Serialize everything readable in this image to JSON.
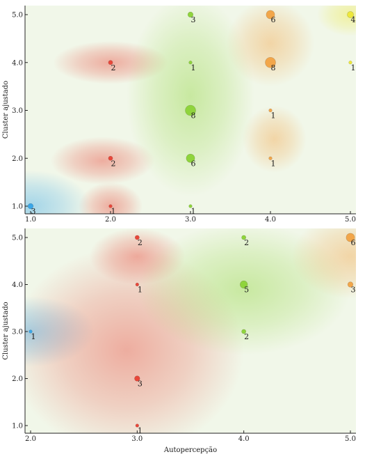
{
  "chart_data": [
    {
      "type": "scatter",
      "title": "",
      "xlabel": "",
      "ylabel": "Cluster ajustado",
      "xlim": [
        1.0,
        5.0
      ],
      "ylim": [
        1.0,
        5.0
      ],
      "x_ticks": [
        "1.0",
        "2.0",
        "3.0",
        "4.0",
        "5.0"
      ],
      "y_ticks": [
        "1.0",
        "2.0",
        "3.0",
        "4.0",
        "5.0"
      ],
      "grid": false,
      "legend": "none",
      "colors": {
        "1": "#3aa7e8",
        "2": "#e8473a",
        "3": "#8fd43c",
        "4": "#f2a64a",
        "5": "#eee83a"
      },
      "background_regions": [
        {
          "x": 1.0,
          "y": 1.0,
          "cluster": 1,
          "rx": 0.75,
          "ry": 0.75
        },
        {
          "x": 2.0,
          "y": 4.0,
          "cluster": 2,
          "rx": 0.72,
          "ry": 0.45
        },
        {
          "x": 1.9,
          "y": 1.95,
          "cluster": 2,
          "rx": 0.65,
          "ry": 0.5
        },
        {
          "x": 2.0,
          "y": 1.0,
          "cluster": 2,
          "rx": 0.4,
          "ry": 0.5
        },
        {
          "x": 3.0,
          "y": 3.3,
          "cluster": 3,
          "rx": 0.8,
          "ry": 2.1
        },
        {
          "x": 4.0,
          "y": 4.4,
          "cluster": 4,
          "rx": 0.55,
          "ry": 0.9
        },
        {
          "x": 4.05,
          "y": 2.4,
          "cluster": 4,
          "rx": 0.4,
          "ry": 0.7
        },
        {
          "x": 5.0,
          "y": 5.0,
          "cluster": 5,
          "rx": 0.42,
          "ry": 0.45
        }
      ],
      "points": [
        {
          "x": 1.0,
          "y": 1.0,
          "cluster": 1,
          "count": 3
        },
        {
          "x": 2.0,
          "y": 1.0,
          "cluster": 2,
          "count": 1
        },
        {
          "x": 2.0,
          "y": 2.0,
          "cluster": 2,
          "count": 2
        },
        {
          "x": 2.0,
          "y": 4.0,
          "cluster": 2,
          "count": 2
        },
        {
          "x": 3.0,
          "y": 1.0,
          "cluster": 3,
          "count": 1
        },
        {
          "x": 3.0,
          "y": 2.0,
          "cluster": 3,
          "count": 6
        },
        {
          "x": 3.0,
          "y": 3.0,
          "cluster": 3,
          "count": 8
        },
        {
          "x": 3.0,
          "y": 4.0,
          "cluster": 3,
          "count": 1
        },
        {
          "x": 3.0,
          "y": 5.0,
          "cluster": 3,
          "count": 3
        },
        {
          "x": 4.0,
          "y": 2.0,
          "cluster": 4,
          "count": 1
        },
        {
          "x": 4.0,
          "y": 3.0,
          "cluster": 4,
          "count": 1
        },
        {
          "x": 4.0,
          "y": 4.0,
          "cluster": 4,
          "count": 8
        },
        {
          "x": 4.0,
          "y": 5.0,
          "cluster": 4,
          "count": 6
        },
        {
          "x": 5.0,
          "y": 4.0,
          "cluster": 5,
          "count": 1
        },
        {
          "x": 5.0,
          "y": 5.0,
          "cluster": 5,
          "count": 4
        }
      ]
    },
    {
      "type": "scatter",
      "title": "",
      "xlabel": "Autopercepção",
      "ylabel": "Cluster ajustado",
      "xlim": [
        2.0,
        5.0
      ],
      "ylim": [
        1.0,
        5.0
      ],
      "x_ticks": [
        "2.0",
        "3.0",
        "4.0",
        "5.0"
      ],
      "y_ticks": [
        "1.0",
        "2.0",
        "3.0",
        "4.0",
        "5.0"
      ],
      "grid": false,
      "legend": "none",
      "colors": {
        "1": "#3aa7e8",
        "2": "#e8473a",
        "3": "#8fd43c",
        "4": "#f2a64a"
      },
      "background_regions": [
        {
          "x": 2.0,
          "y": 3.0,
          "cluster": 1,
          "rx": 0.6,
          "ry": 0.75
        },
        {
          "x": 2.9,
          "y": 2.6,
          "cluster": 2,
          "rx": 1.1,
          "ry": 2.2
        },
        {
          "x": 3.0,
          "y": 4.6,
          "cluster": 2,
          "rx": 0.45,
          "ry": 0.6
        },
        {
          "x": 4.0,
          "y": 3.9,
          "cluster": 3,
          "rx": 1.0,
          "ry": 1.4
        },
        {
          "x": 5.0,
          "y": 4.6,
          "cluster": 4,
          "rx": 0.55,
          "ry": 0.9
        }
      ],
      "points": [
        {
          "x": 2.0,
          "y": 3.0,
          "cluster": 1,
          "count": 1
        },
        {
          "x": 3.0,
          "y": 1.0,
          "cluster": 2,
          "count": 1
        },
        {
          "x": 3.0,
          "y": 2.0,
          "cluster": 2,
          "count": 3
        },
        {
          "x": 3.0,
          "y": 4.0,
          "cluster": 2,
          "count": 1
        },
        {
          "x": 3.0,
          "y": 5.0,
          "cluster": 2,
          "count": 2
        },
        {
          "x": 4.0,
          "y": 3.0,
          "cluster": 3,
          "count": 2
        },
        {
          "x": 4.0,
          "y": 4.0,
          "cluster": 3,
          "count": 5
        },
        {
          "x": 4.0,
          "y": 5.0,
          "cluster": 3,
          "count": 2
        },
        {
          "x": 5.0,
          "y": 4.0,
          "cluster": 4,
          "count": 3
        },
        {
          "x": 5.0,
          "y": 5.0,
          "cluster": 4,
          "count": 6
        }
      ]
    }
  ]
}
